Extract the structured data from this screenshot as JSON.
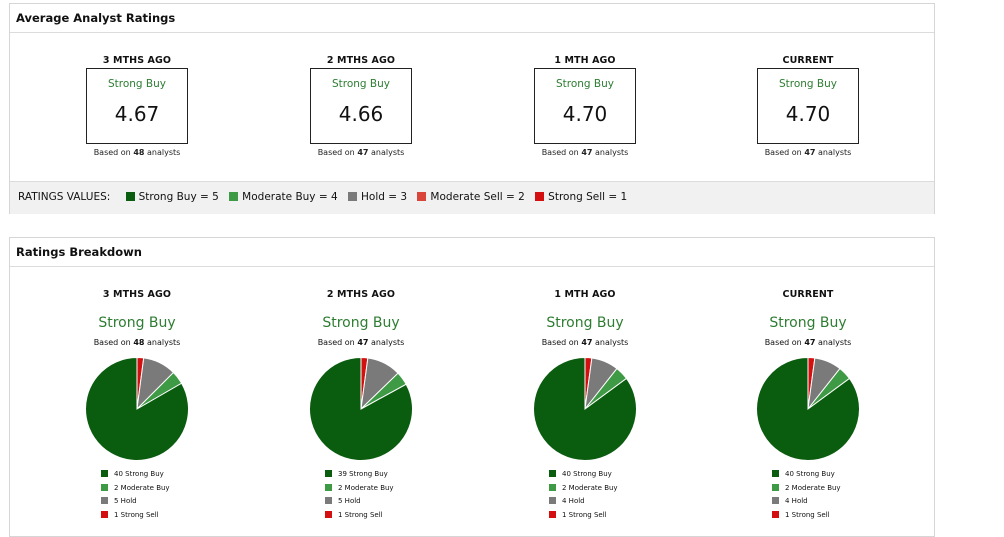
{
  "avg": {
    "title": "Average Analyst Ratings",
    "columns": [
      {
        "head": "3 MTHS AGO",
        "label": "Strong Buy",
        "score": "4.67",
        "based_prefix": "Based on",
        "based_count": "48",
        "based_suffix": "analysts"
      },
      {
        "head": "2 MTHS AGO",
        "label": "Strong Buy",
        "score": "4.66",
        "based_prefix": "Based on",
        "based_count": "47",
        "based_suffix": "analysts"
      },
      {
        "head": "1 MTH AGO",
        "label": "Strong Buy",
        "score": "4.70",
        "based_prefix": "Based on",
        "based_count": "47",
        "based_suffix": "analysts"
      },
      {
        "head": "CURRENT",
        "label": "Strong Buy",
        "score": "4.70",
        "based_prefix": "Based on",
        "based_count": "47",
        "based_suffix": "analysts"
      }
    ],
    "values_bar": {
      "heading": "RATINGS VALUES:",
      "items": [
        {
          "text": "Strong Buy = 5",
          "color": "#0a5c0f"
        },
        {
          "text": "Moderate Buy = 4",
          "color": "#3f9a45"
        },
        {
          "text": "Hold = 3",
          "color": "#7a7a7a"
        },
        {
          "text": "Moderate Sell = 2",
          "color": "#d9453a"
        },
        {
          "text": "Strong Sell = 1",
          "color": "#d40f0f"
        }
      ]
    }
  },
  "breakdown": {
    "title": "Ratings Breakdown",
    "columns": [
      {
        "head": "3 MTHS AGO",
        "label": "Strong Buy",
        "based_prefix": "Based on",
        "based_count": "48",
        "based_suffix": "analysts",
        "legend": [
          "40 Strong Buy",
          "2 Moderate Buy",
          "5 Hold",
          "1 Strong Sell"
        ]
      },
      {
        "head": "2 MTHS AGO",
        "label": "Strong Buy",
        "based_prefix": "Based on",
        "based_count": "47",
        "based_suffix": "analysts",
        "legend": [
          "39 Strong Buy",
          "2 Moderate Buy",
          "5 Hold",
          "1 Strong Sell"
        ]
      },
      {
        "head": "1 MTH AGO",
        "label": "Strong Buy",
        "based_prefix": "Based on",
        "based_count": "47",
        "based_suffix": "analysts",
        "legend": [
          "40 Strong Buy",
          "2 Moderate Buy",
          "4 Hold",
          "1 Strong Sell"
        ]
      },
      {
        "head": "CURRENT",
        "label": "Strong Buy",
        "based_prefix": "Based on",
        "based_count": "47",
        "based_suffix": "analysts",
        "legend": [
          "40 Strong Buy",
          "2 Moderate Buy",
          "4 Hold",
          "1 Strong Sell"
        ]
      }
    ]
  },
  "chart_data": [
    {
      "type": "pie",
      "title": "3 MTHS AGO",
      "categories": [
        "Strong Buy",
        "Moderate Buy",
        "Hold",
        "Strong Sell"
      ],
      "values": [
        40,
        2,
        5,
        1
      ],
      "colors": [
        "#0a5c0f",
        "#3f9a45",
        "#7a7a7a",
        "#d40f0f"
      ]
    },
    {
      "type": "pie",
      "title": "2 MTHS AGO",
      "categories": [
        "Strong Buy",
        "Moderate Buy",
        "Hold",
        "Strong Sell"
      ],
      "values": [
        39,
        2,
        5,
        1
      ],
      "colors": [
        "#0a5c0f",
        "#3f9a45",
        "#7a7a7a",
        "#d40f0f"
      ]
    },
    {
      "type": "pie",
      "title": "1 MTH AGO",
      "categories": [
        "Strong Buy",
        "Moderate Buy",
        "Hold",
        "Strong Sell"
      ],
      "values": [
        40,
        2,
        4,
        1
      ],
      "colors": [
        "#0a5c0f",
        "#3f9a45",
        "#7a7a7a",
        "#d40f0f"
      ]
    },
    {
      "type": "pie",
      "title": "CURRENT",
      "categories": [
        "Strong Buy",
        "Moderate Buy",
        "Hold",
        "Strong Sell"
      ],
      "values": [
        40,
        2,
        4,
        1
      ],
      "colors": [
        "#0a5c0f",
        "#3f9a45",
        "#7a7a7a",
        "#d40f0f"
      ]
    }
  ]
}
